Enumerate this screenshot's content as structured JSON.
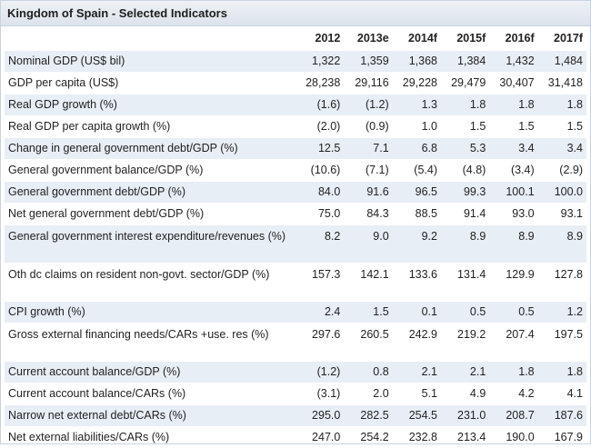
{
  "title": "Kingdom of Spain - Selected Indicators",
  "columns": [
    "2012",
    "2013e",
    "2014f",
    "2015f",
    "2016f",
    "2017f"
  ],
  "rows": [
    {
      "label": "Nominal GDP (US$ bil)",
      "values": [
        "1,322",
        "1,359",
        "1,368",
        "1,384",
        "1,432",
        "1,484"
      ]
    },
    {
      "label": "GDP per capita (US$)",
      "values": [
        "28,238",
        "29,116",
        "29,228",
        "29,479",
        "30,407",
        "31,418"
      ]
    },
    {
      "label": "Real GDP growth (%)",
      "values": [
        "(1.6)",
        "(1.2)",
        "1.3",
        "1.8",
        "1.8",
        "1.8"
      ]
    },
    {
      "label": "Real GDP per capita growth (%)",
      "values": [
        "(2.0)",
        "(0.9)",
        "1.0",
        "1.5",
        "1.5",
        "1.5"
      ]
    },
    {
      "label": "Change in general government debt/GDP (%)",
      "values": [
        "12.5",
        "7.1",
        "6.8",
        "5.3",
        "3.4",
        "3.4"
      ]
    },
    {
      "label": "General government balance/GDP (%)",
      "values": [
        "(10.6)",
        "(7.1)",
        "(5.4)",
        "(4.8)",
        "(3.4)",
        "(2.9)"
      ]
    },
    {
      "label": "General government debt/GDP (%)",
      "values": [
        "84.0",
        "91.6",
        "96.5",
        "99.3",
        "100.1",
        "100.0"
      ]
    },
    {
      "label": "Net general government debt/GDP (%)",
      "values": [
        "75.0",
        "84.3",
        "88.5",
        "91.4",
        "93.0",
        "93.1"
      ]
    },
    {
      "label": "General government interest expenditure/revenues (%)",
      "values": [
        "8.2",
        "9.0",
        "9.2",
        "8.9",
        "8.9",
        "8.9"
      ]
    },
    {
      "label": "Oth dc claims on resident non-govt. sector/GDP (%)",
      "values": [
        "157.3",
        "142.1",
        "133.6",
        "131.4",
        "129.9",
        "127.8"
      ]
    },
    {
      "label": "CPI growth (%)",
      "values": [
        "2.4",
        "1.5",
        "0.1",
        "0.5",
        "0.5",
        "1.2"
      ]
    },
    {
      "label": "Gross external financing needs/CARs +use. res (%)",
      "values": [
        "297.6",
        "260.5",
        "242.9",
        "219.2",
        "207.4",
        "197.5"
      ]
    },
    {
      "label": "Current account balance/GDP (%)",
      "values": [
        "(1.2)",
        "0.8",
        "2.1",
        "2.1",
        "1.8",
        "1.8"
      ]
    },
    {
      "label": "Current account balance/CARs (%)",
      "values": [
        "(3.1)",
        "2.0",
        "5.1",
        "4.9",
        "4.2",
        "4.1"
      ]
    },
    {
      "label": "Narrow net external debt/CARs (%)",
      "values": [
        "295.0",
        "282.5",
        "254.5",
        "231.0",
        "208.7",
        "187.6"
      ]
    },
    {
      "label": "Net external liabilities/CARs (%)",
      "values": [
        "247.0",
        "254.2",
        "232.8",
        "213.4",
        "190.0",
        "167.9"
      ]
    }
  ]
}
